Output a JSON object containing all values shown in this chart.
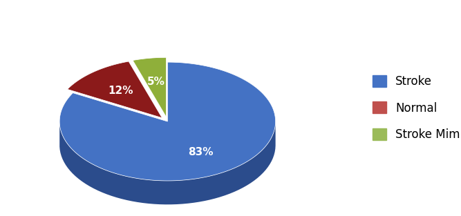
{
  "labels": [
    "Stroke",
    "Normal",
    "Stroke Mimics"
  ],
  "values": [
    83,
    12,
    5
  ],
  "colors": [
    "#4472C4",
    "#8B1A1A",
    "#8FAF3A"
  ],
  "side_colors": [
    "#2B4C8C",
    "#5C1010",
    "#5A7020"
  ],
  "explode": [
    0,
    0.08,
    0.08
  ],
  "legend_labels": [
    "Stroke",
    "Normal",
    "Stroke Mimics"
  ],
  "legend_colors": [
    "#4472C4",
    "#C0504D",
    "#9BBB59"
  ],
  "startangle": 90,
  "background_color": "#FFFFFF",
  "text_color": "#FFFFFF",
  "label_fontsize": 11,
  "legend_fontsize": 12,
  "depth": 0.22,
  "yscale": 0.55
}
